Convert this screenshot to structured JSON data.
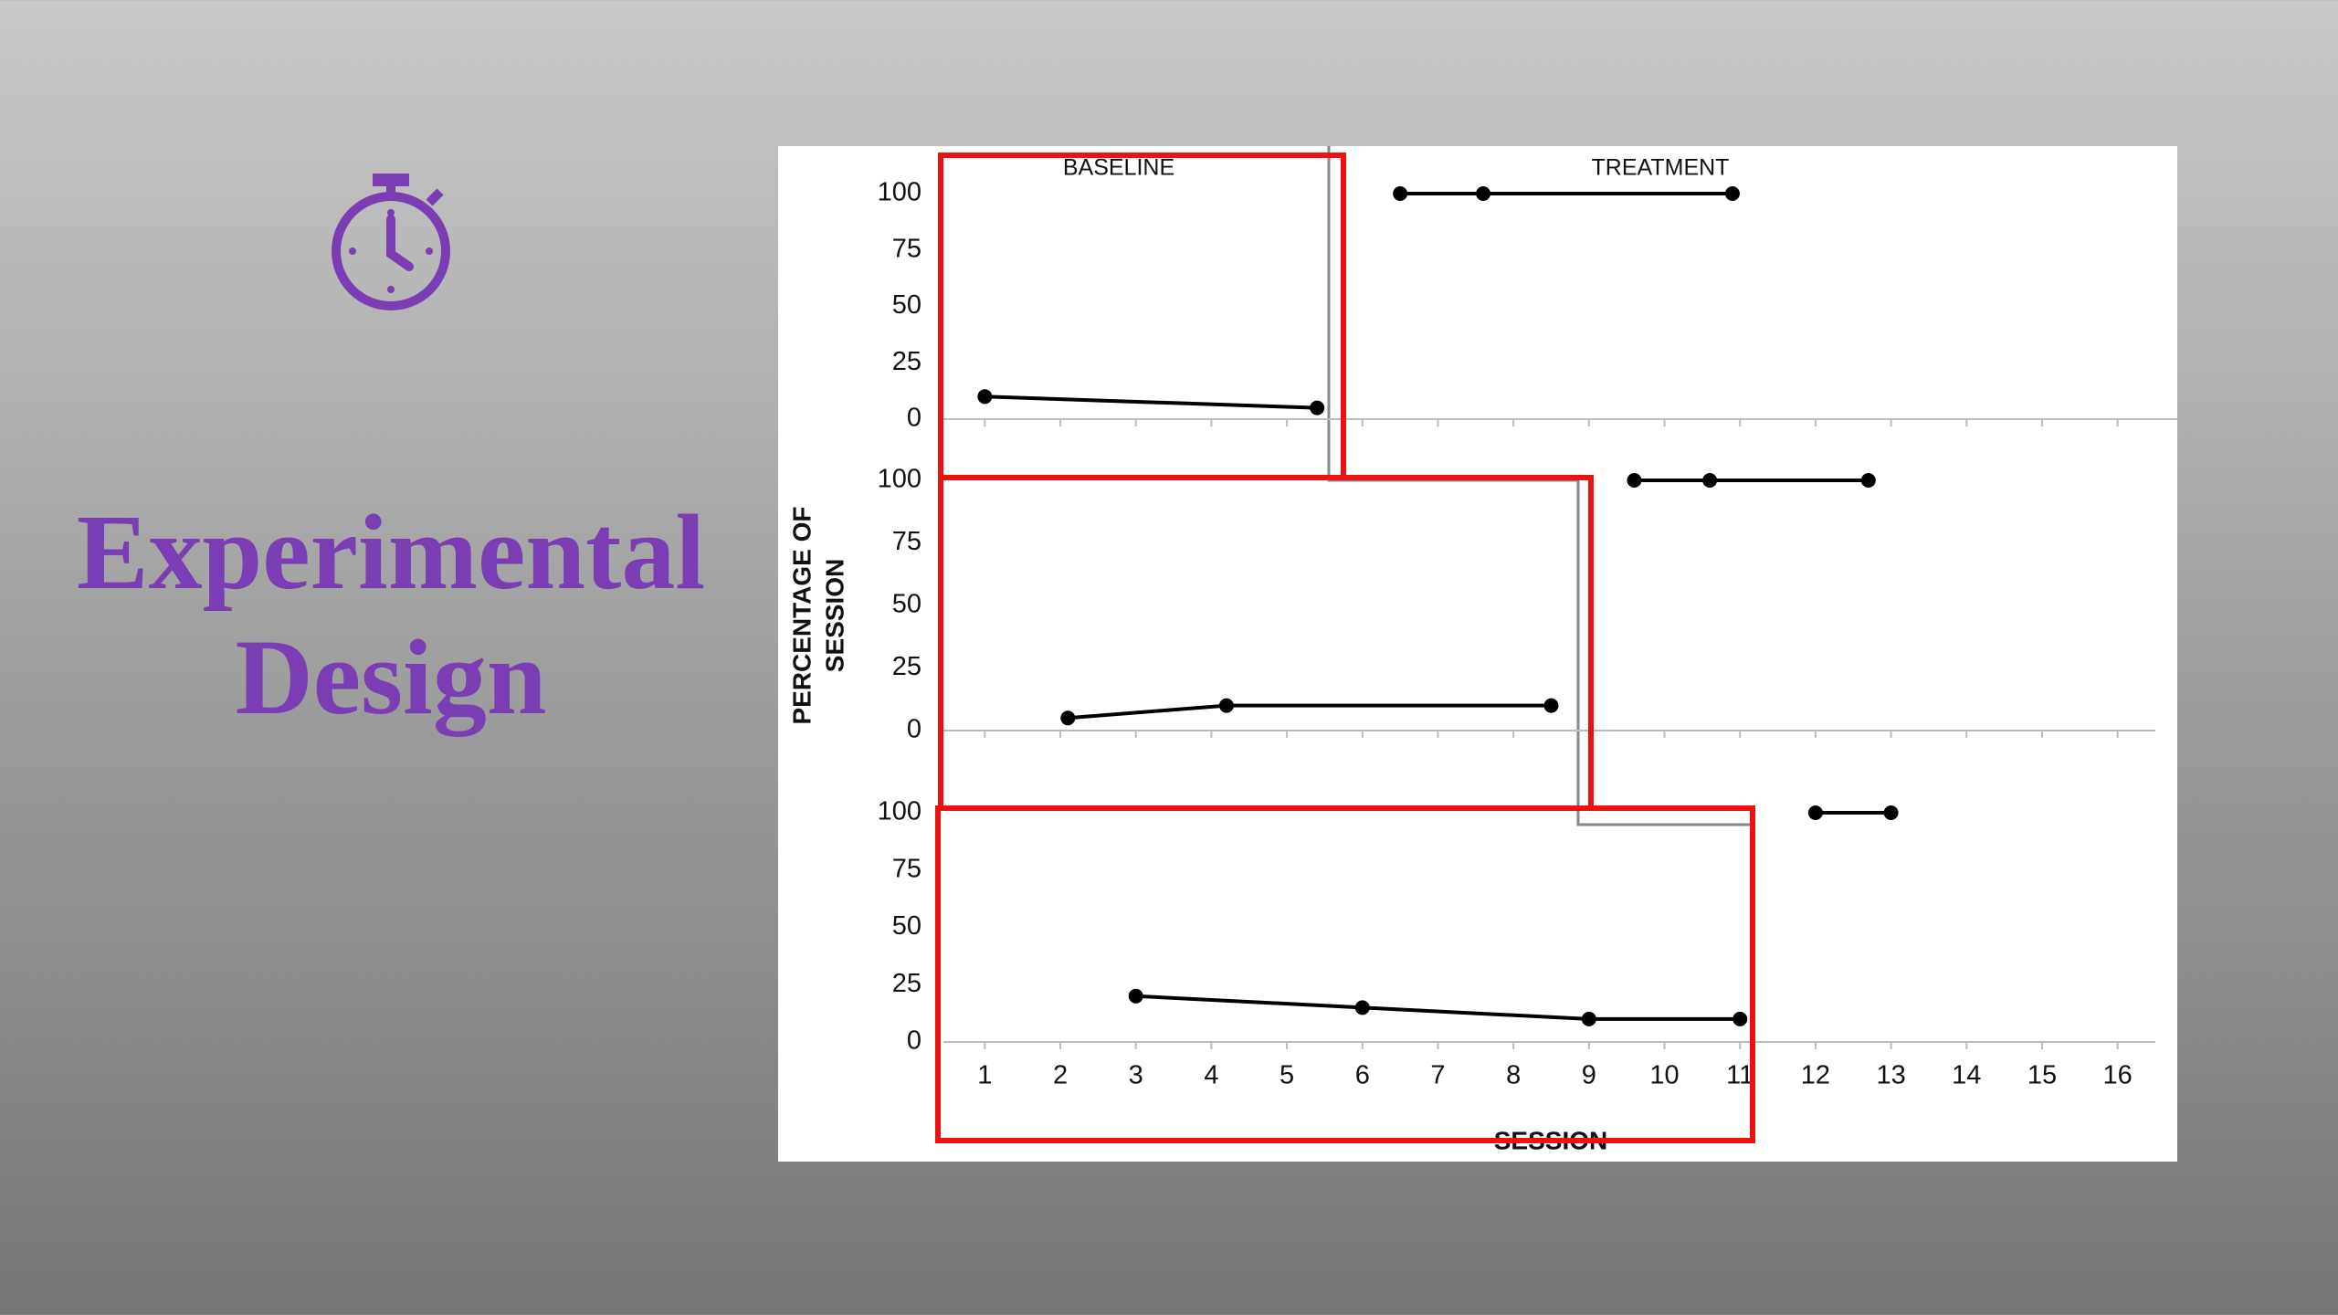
{
  "slide_title": [
    "Experimental",
    "Design"
  ],
  "chart_data": [
    {
      "type": "line",
      "annotations": [
        "BASELINE",
        "TREATMENT"
      ],
      "xlim": [
        0.5,
        16.5
      ],
      "ylim": [
        0,
        100
      ],
      "yticks": [
        0,
        25,
        50,
        75,
        100
      ],
      "series": [
        {
          "color": "#000000",
          "x": [
            1,
            5.4
          ],
          "values": [
            10,
            5
          ]
        },
        {
          "color": "#000000",
          "x": [
            6.5,
            7.6,
            10.9
          ],
          "values": [
            100,
            100,
            100
          ]
        }
      ]
    },
    {
      "type": "line",
      "ylabel": [
        "PERCENTAGE OF",
        "SESSION"
      ],
      "xlim": [
        0.5,
        16.5
      ],
      "ylim": [
        0,
        100
      ],
      "yticks": [
        0,
        25,
        50,
        75,
        100
      ],
      "series": [
        {
          "color": "#000000",
          "x": [
            2.1,
            4.2,
            8.5
          ],
          "values": [
            5,
            10,
            10
          ]
        },
        {
          "color": "#000000",
          "x": [
            9.6,
            10.6,
            12.7
          ],
          "values": [
            100,
            100,
            100
          ]
        }
      ]
    },
    {
      "type": "line",
      "xlabel": "SESSION",
      "xlim": [
        0.5,
        16.5
      ],
      "ylim": [
        0,
        100
      ],
      "yticks": [
        0,
        25,
        50,
        75,
        100
      ],
      "xticks": [
        1,
        2,
        3,
        4,
        5,
        6,
        7,
        8,
        9,
        10,
        11,
        12,
        13,
        14,
        15,
        16
      ],
      "series": [
        {
          "color": "#000000",
          "x": [
            3,
            6,
            9,
            11
          ],
          "values": [
            20,
            15,
            10,
            10
          ]
        },
        {
          "color": "#000000",
          "x": [
            12,
            13
          ],
          "values": [
            100,
            100
          ]
        }
      ]
    }
  ]
}
